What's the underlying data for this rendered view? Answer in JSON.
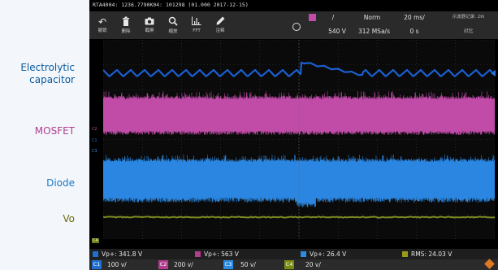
{
  "labels": {
    "electrolytic_line1": "Electrolytic",
    "electrolytic_line2": "capacitor",
    "mosfet": "MOSFET",
    "diode": "Diode",
    "vo": "Vo"
  },
  "label_colors": {
    "electrolytic": "#0a5aa0",
    "mosfet": "#b23c8e",
    "diode": "#1a78c8",
    "vo": "#6a6a10"
  },
  "scope": {
    "title": "RTA4004: 1236.7790K04: 101298 (01.000 2017-12-15)",
    "toolbar": [
      {
        "icon": "undo-icon",
        "glyph": "↶",
        "label": "撤销"
      },
      {
        "icon": "trash-icon",
        "glyph": "🗑",
        "label": "删除"
      },
      {
        "icon": "camera-icon",
        "glyph": "◉",
        "label": "截屏"
      },
      {
        "icon": "zoom-icon",
        "glyph": "⌕",
        "label": "缩放"
      },
      {
        "icon": "fft-icon",
        "glyph": "≙",
        "label": "FFT"
      },
      {
        "icon": "pen-icon",
        "glyph": "✎",
        "label": "注释"
      }
    ],
    "trigger": {
      "slope": "/",
      "mode": "Norm",
      "time_div": "20 ms/",
      "level": "540 V",
      "sample": "312 MSa/s",
      "offset": "0 s",
      "right_top": "示波器记录: 2Ki",
      "right_bottom": "对比"
    },
    "channels": {
      "c1": "C1",
      "c2": "C2",
      "c3": "C3",
      "c4": "C4"
    },
    "measurements": [
      {
        "text": "Vp+: 341.8 V",
        "color": "#1f6fd0"
      },
      {
        "text": "Vp+: 563 V",
        "color": "#b23c8e"
      },
      {
        "text": "Vp+: 26.4 V",
        "color": "#2c8ae0"
      },
      {
        "text": "RMS: 24.03 V",
        "color": "#9a9a1a"
      }
    ],
    "scales": [
      {
        "chip": "C1",
        "value": "100 v/",
        "color": "#1f6fd0"
      },
      {
        "chip": "C2",
        "value": "200 v/",
        "color": "#b23c8e"
      },
      {
        "chip": "C3",
        "value": "50 v/",
        "color": "#2c8ae0"
      },
      {
        "chip": "C4",
        "value": "20 v/",
        "color": "#7a8a10"
      }
    ],
    "colors": {
      "cap": "#1b5fd0",
      "mosfet": "#c04ca8",
      "diode": "#2a86e0",
      "vo": "#7d8a22"
    }
  }
}
